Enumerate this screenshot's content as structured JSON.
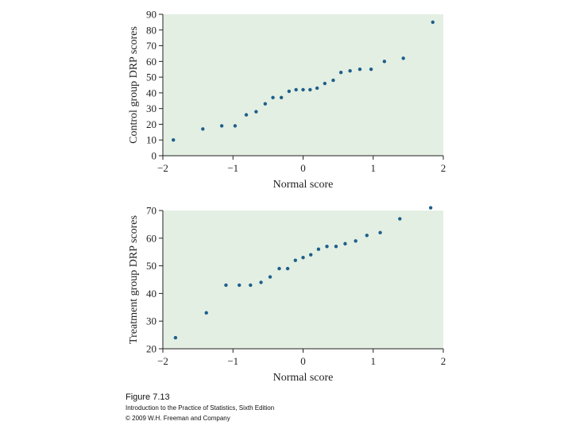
{
  "chart_data": [
    {
      "type": "scatter",
      "xlabel": "Normal score",
      "ylabel": "Control group DRP scores",
      "xlim": [
        -2,
        2
      ],
      "ylim": [
        0,
        90
      ],
      "xticks": [
        "−2",
        "−1",
        "0",
        "1",
        "2"
      ],
      "xtick_values": [
        -2,
        -1,
        0,
        1,
        2
      ],
      "yticks": [
        "0",
        "10",
        "20",
        "30",
        "40",
        "50",
        "60",
        "70",
        "80",
        "90"
      ],
      "ytick_values": [
        0,
        10,
        20,
        30,
        40,
        50,
        60,
        70,
        80,
        90
      ],
      "background": "#e3efe3",
      "point_color": "#1f5f8b",
      "points": [
        [
          -1.85,
          10
        ],
        [
          -1.43,
          17
        ],
        [
          -1.16,
          19
        ],
        [
          -0.97,
          19
        ],
        [
          -0.81,
          26
        ],
        [
          -0.67,
          28
        ],
        [
          -0.54,
          33
        ],
        [
          -0.43,
          37
        ],
        [
          -0.31,
          37
        ],
        [
          -0.2,
          41
        ],
        [
          -0.1,
          42
        ],
        [
          0.0,
          42
        ],
        [
          0.1,
          42
        ],
        [
          0.2,
          43
        ],
        [
          0.31,
          46
        ],
        [
          0.43,
          48
        ],
        [
          0.54,
          53
        ],
        [
          0.67,
          54
        ],
        [
          0.81,
          55
        ],
        [
          0.97,
          55
        ],
        [
          1.16,
          60
        ],
        [
          1.43,
          62
        ],
        [
          1.85,
          85
        ]
      ]
    },
    {
      "type": "scatter",
      "xlabel": "Normal score",
      "ylabel": "Treatment group DRP scores",
      "xlim": [
        -2,
        2
      ],
      "ylim": [
        20,
        70
      ],
      "xticks": [
        "−2",
        "−1",
        "0",
        "1",
        "2"
      ],
      "xtick_values": [
        -2,
        -1,
        0,
        1,
        2
      ],
      "yticks": [
        "20",
        "30",
        "40",
        "50",
        "60",
        "70"
      ],
      "ytick_values": [
        20,
        30,
        40,
        50,
        60,
        70
      ],
      "background": "#e3efe3",
      "point_color": "#1f5f8b",
      "points": [
        [
          -1.82,
          24
        ],
        [
          -1.38,
          33
        ],
        [
          -1.1,
          43
        ],
        [
          -0.91,
          43
        ],
        [
          -0.75,
          43
        ],
        [
          -0.6,
          44
        ],
        [
          -0.47,
          46
        ],
        [
          -0.34,
          49
        ],
        [
          -0.22,
          49
        ],
        [
          -0.11,
          52
        ],
        [
          0.0,
          53
        ],
        [
          0.11,
          54
        ],
        [
          0.22,
          56
        ],
        [
          0.34,
          57
        ],
        [
          0.47,
          57
        ],
        [
          0.6,
          58
        ],
        [
          0.75,
          59
        ],
        [
          0.91,
          61
        ],
        [
          1.1,
          62
        ],
        [
          1.38,
          67
        ],
        [
          1.82,
          71
        ]
      ]
    }
  ],
  "caption": {
    "figure_label": "Figure 7.13",
    "book_title": "Introduction to the Practice of Statistics, Sixth Edition",
    "copyright": "© 2009 W.H. Freeman and Company"
  }
}
